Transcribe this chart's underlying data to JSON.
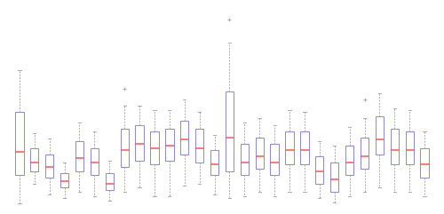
{
  "boxes": [
    {
      "whislo": 0.03,
      "q1": 0.3,
      "med": 0.52,
      "q3": 0.9,
      "whishi": 1.3,
      "fliers_high": [],
      "fliers_low": []
    },
    {
      "whislo": 0.22,
      "q1": 0.34,
      "med": 0.42,
      "q3": 0.56,
      "whishi": 0.7,
      "fliers_high": [],
      "fliers_low": []
    },
    {
      "whislo": 0.12,
      "q1": 0.28,
      "med": 0.38,
      "q3": 0.5,
      "whishi": 0.65,
      "fliers_high": [],
      "fliers_low": []
    },
    {
      "whislo": 0.08,
      "q1": 0.18,
      "med": 0.24,
      "q3": 0.32,
      "whishi": 0.42,
      "fliers_high": [],
      "fliers_low": []
    },
    {
      "whislo": 0.14,
      "q1": 0.34,
      "med": 0.46,
      "q3": 0.62,
      "whishi": 0.8,
      "fliers_high": [],
      "fliers_low": []
    },
    {
      "whislo": 0.1,
      "q1": 0.3,
      "med": 0.42,
      "q3": 0.56,
      "whishi": 0.72,
      "fliers_high": [],
      "fliers_low": []
    },
    {
      "whislo": 0.06,
      "q1": 0.16,
      "med": 0.22,
      "q3": 0.32,
      "whishi": 0.44,
      "fliers_high": [],
      "fliers_low": []
    },
    {
      "whislo": 0.14,
      "q1": 0.38,
      "med": 0.54,
      "q3": 0.74,
      "whishi": 0.96,
      "fliers_high": [
        1.12
      ],
      "fliers_low": []
    },
    {
      "whislo": 0.18,
      "q1": 0.44,
      "med": 0.6,
      "q3": 0.78,
      "whishi": 0.96,
      "fliers_high": [],
      "fliers_low": []
    },
    {
      "whislo": 0.1,
      "q1": 0.4,
      "med": 0.56,
      "q3": 0.72,
      "whishi": 0.92,
      "fliers_high": [],
      "fliers_low": []
    },
    {
      "whislo": 0.1,
      "q1": 0.44,
      "med": 0.58,
      "q3": 0.74,
      "whishi": 0.92,
      "fliers_high": [],
      "fliers_low": []
    },
    {
      "whislo": 0.2,
      "q1": 0.5,
      "med": 0.64,
      "q3": 0.82,
      "whishi": 1.02,
      "fliers_high": [],
      "fliers_low": []
    },
    {
      "whislo": 0.22,
      "q1": 0.42,
      "med": 0.56,
      "q3": 0.74,
      "whishi": 0.9,
      "fliers_high": [],
      "fliers_low": []
    },
    {
      "whislo": 0.12,
      "q1": 0.3,
      "med": 0.4,
      "q3": 0.54,
      "whishi": 0.68,
      "fliers_high": [],
      "fliers_low": []
    },
    {
      "whislo": 0.08,
      "q1": 0.34,
      "med": 0.66,
      "q3": 1.1,
      "whishi": 1.56,
      "fliers_high": [
        1.78
      ],
      "fliers_low": []
    },
    {
      "whislo": 0.1,
      "q1": 0.3,
      "med": 0.42,
      "q3": 0.6,
      "whishi": 0.8,
      "fliers_high": [],
      "fliers_low": []
    },
    {
      "whislo": 0.14,
      "q1": 0.36,
      "med": 0.48,
      "q3": 0.66,
      "whishi": 0.84,
      "fliers_high": [],
      "fliers_low": []
    },
    {
      "whislo": 0.1,
      "q1": 0.3,
      "med": 0.42,
      "q3": 0.6,
      "whishi": 0.78,
      "fliers_high": [],
      "fliers_low": []
    },
    {
      "whislo": 0.14,
      "q1": 0.4,
      "med": 0.54,
      "q3": 0.72,
      "whishi": 0.92,
      "fliers_high": [],
      "fliers_low": []
    },
    {
      "whislo": 0.14,
      "q1": 0.4,
      "med": 0.54,
      "q3": 0.72,
      "whishi": 0.9,
      "fliers_high": [],
      "fliers_low": []
    },
    {
      "whislo": 0.08,
      "q1": 0.22,
      "med": 0.34,
      "q3": 0.48,
      "whishi": 0.62,
      "fliers_high": [],
      "fliers_low": []
    },
    {
      "whislo": 0.04,
      "q1": 0.14,
      "med": 0.26,
      "q3": 0.42,
      "whishi": 0.58,
      "fliers_high": [],
      "fliers_low": []
    },
    {
      "whislo": 0.1,
      "q1": 0.3,
      "med": 0.42,
      "q3": 0.58,
      "whishi": 0.76,
      "fliers_high": [],
      "fliers_low": []
    },
    {
      "whislo": 0.14,
      "q1": 0.36,
      "med": 0.48,
      "q3": 0.66,
      "whishi": 0.84,
      "fliers_high": [
        1.02
      ],
      "fliers_low": []
    },
    {
      "whislo": 0.18,
      "q1": 0.5,
      "med": 0.64,
      "q3": 0.86,
      "whishi": 1.08,
      "fliers_high": [],
      "fliers_low": []
    },
    {
      "whislo": 0.14,
      "q1": 0.4,
      "med": 0.54,
      "q3": 0.74,
      "whishi": 0.94,
      "fliers_high": [],
      "fliers_low": []
    },
    {
      "whislo": 0.14,
      "q1": 0.4,
      "med": 0.54,
      "q3": 0.72,
      "whishi": 0.92,
      "fliers_high": [],
      "fliers_low": []
    },
    {
      "whislo": 0.1,
      "q1": 0.28,
      "med": 0.4,
      "q3": 0.56,
      "whishi": 0.72,
      "fliers_high": [],
      "fliers_low": []
    }
  ],
  "box_color": "#8888dd",
  "median_color": "#ff5555",
  "whisker_color": "#aaaaaa",
  "cap_color": "#aaaaaa",
  "flier_color": "#aaaaaa",
  "linewidth": 0.7,
  "box_width": 0.55,
  "figsize": [
    5.0,
    2.41
  ],
  "dpi": 100,
  "ylim": [
    -0.05,
    1.95
  ],
  "background_color": "#ffffff"
}
